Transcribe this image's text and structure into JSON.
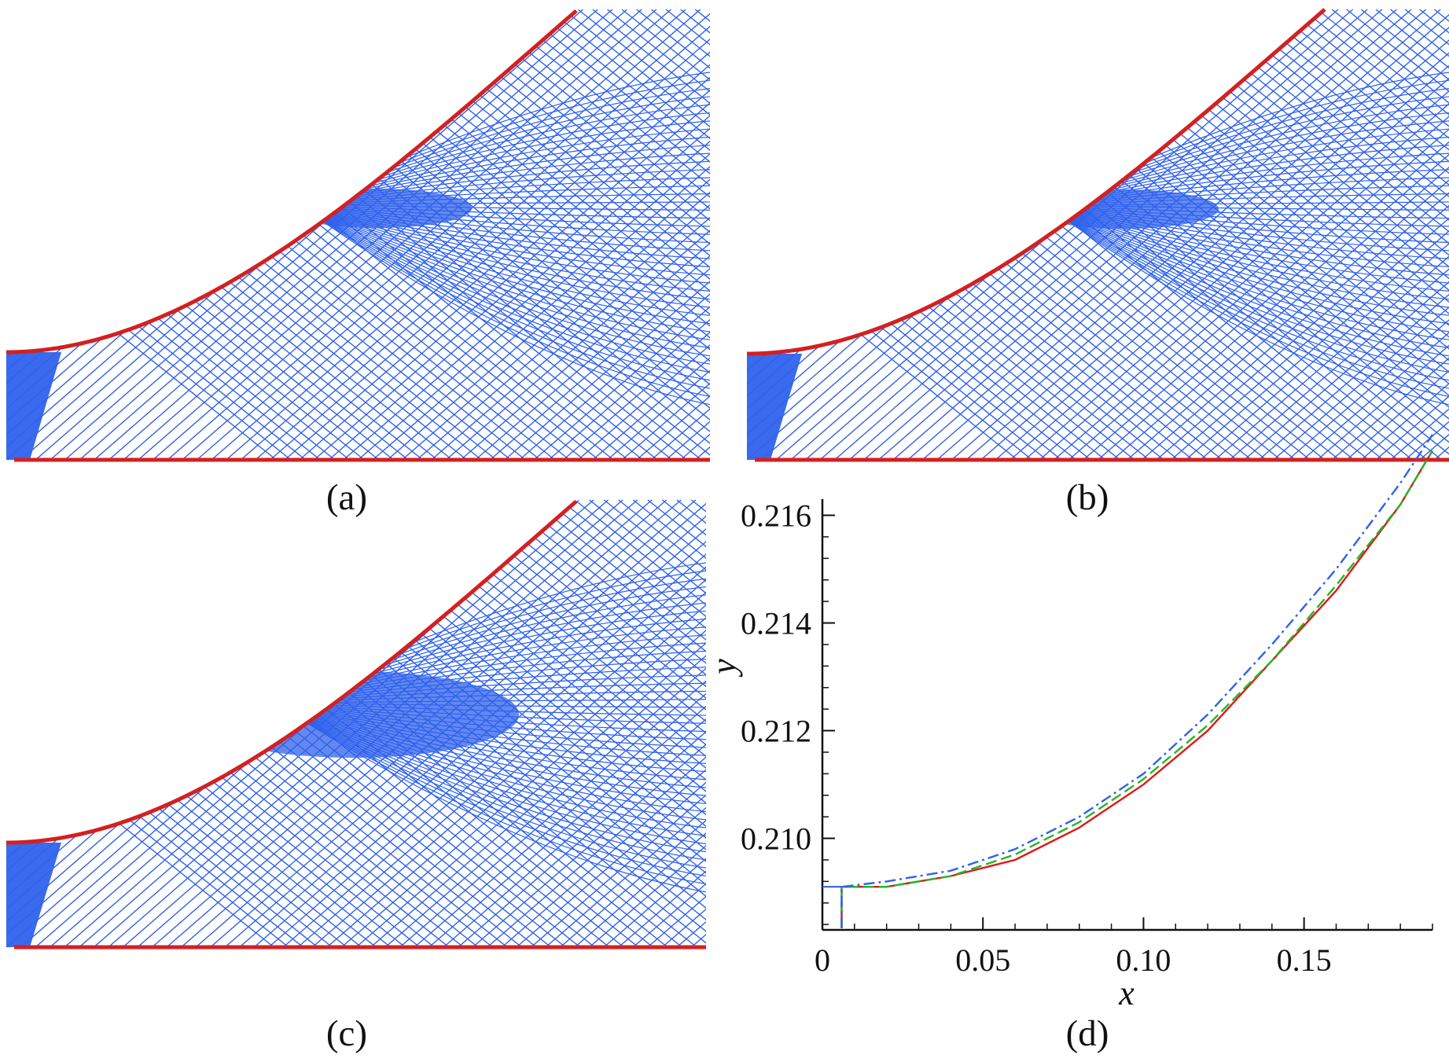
{
  "colors": {
    "mesh": "#2f62ec",
    "wall": "#d42020",
    "curve_red": "#e01818",
    "curve_green": "#23b823",
    "curve_blue": "#2f62ec",
    "axis": "#111111"
  },
  "panels": [
    {
      "id": "a",
      "caption": "(a)",
      "kind": "characteristic-mesh"
    },
    {
      "id": "b",
      "caption": "(b)",
      "kind": "characteristic-mesh"
    },
    {
      "id": "c",
      "caption": "(c)",
      "kind": "characteristic-mesh"
    },
    {
      "id": "d",
      "caption": "(d)",
      "kind": "line-plot"
    }
  ],
  "chart_data": {
    "type": "line",
    "panel": "d",
    "xlabel": "x",
    "ylabel": "y",
    "xlim": [
      0,
      0.19
    ],
    "ylim": [
      0.2083,
      0.2163
    ],
    "xticks": [
      {
        "value": 0,
        "label": "0"
      },
      {
        "value": 0.05,
        "label": "0.05"
      },
      {
        "value": 0.1,
        "label": "0.10"
      },
      {
        "value": 0.15,
        "label": "0.15"
      }
    ],
    "yticks": [
      {
        "value": 0.21,
        "label": "0.210"
      },
      {
        "value": 0.212,
        "label": "0.212"
      },
      {
        "value": 0.214,
        "label": "0.214"
      },
      {
        "value": 0.216,
        "label": "0.216"
      }
    ],
    "grid": false,
    "series": [
      {
        "color": "#e01818",
        "style": "solid",
        "x": [
          0.006,
          0.02,
          0.04,
          0.06,
          0.08,
          0.1,
          0.12,
          0.14,
          0.16,
          0.18,
          0.19
        ],
        "y": [
          0.2091,
          0.2091,
          0.2093,
          0.2096,
          0.2102,
          0.211,
          0.212,
          0.2133,
          0.2146,
          0.2162,
          0.2172
        ]
      },
      {
        "color": "#23b823",
        "style": "dash",
        "x": [
          0.006,
          0.02,
          0.04,
          0.06,
          0.08,
          0.1,
          0.12,
          0.14,
          0.16,
          0.18,
          0.19
        ],
        "y": [
          0.2091,
          0.2091,
          0.2093,
          0.2097,
          0.2103,
          0.2111,
          0.2121,
          0.2133,
          0.2147,
          0.2162,
          0.2172
        ]
      },
      {
        "color": "#2f62ec",
        "style": "dashdot",
        "x": [
          0.006,
          0.02,
          0.04,
          0.06,
          0.08,
          0.1,
          0.12,
          0.14,
          0.16,
          0.18,
          0.19
        ],
        "y": [
          0.2091,
          0.2092,
          0.2094,
          0.2098,
          0.2104,
          0.2112,
          0.2123,
          0.2136,
          0.215,
          0.2166,
          0.2175
        ]
      }
    ]
  }
}
